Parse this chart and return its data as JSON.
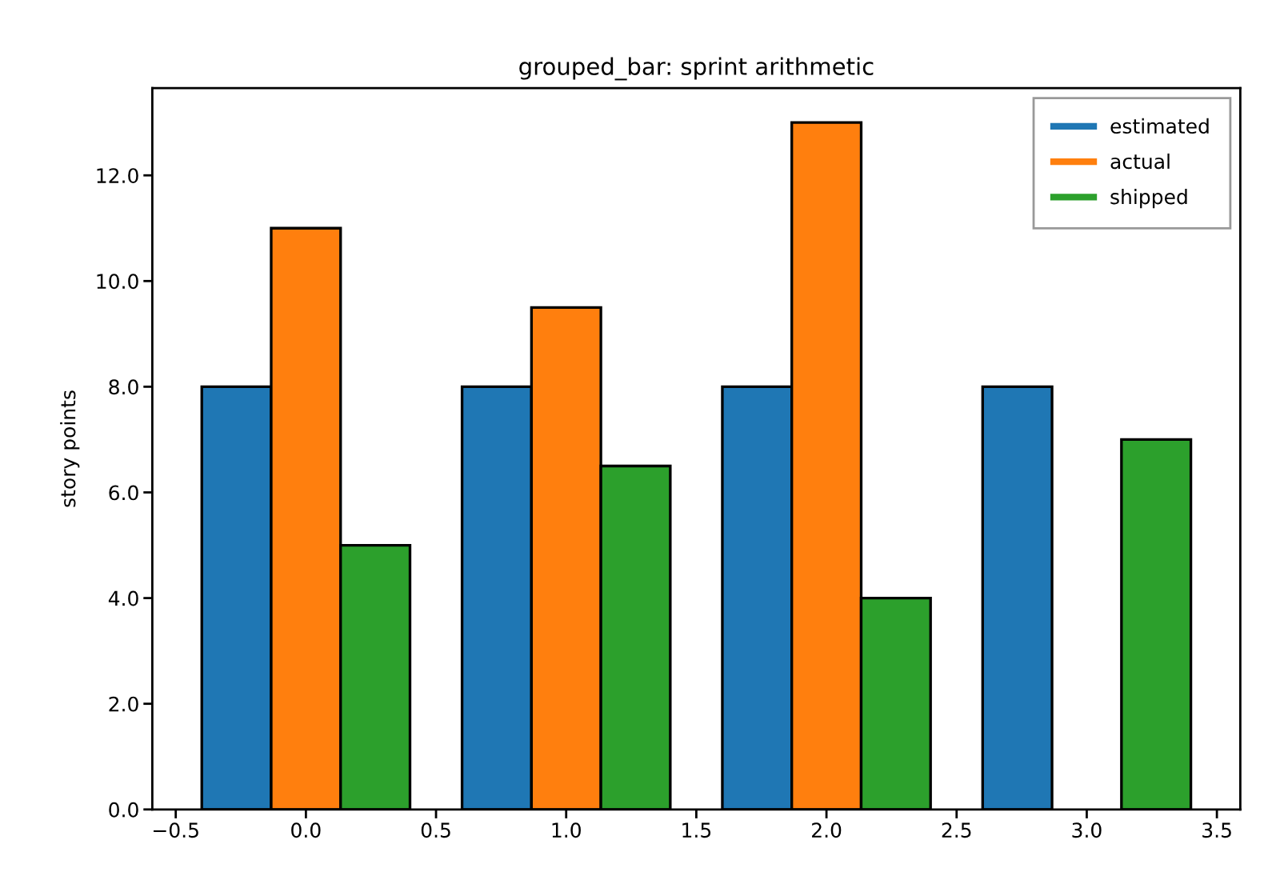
{
  "chart_data": {
    "type": "bar",
    "title": "grouped_bar: sprint arithmetic",
    "ylabel": "story points",
    "x": [
      0,
      1,
      2,
      3
    ],
    "series": [
      {
        "name": "estimated",
        "color": "#1f77b4",
        "values": [
          8,
          8,
          8,
          8
        ]
      },
      {
        "name": "actual",
        "color": "#ff7f0e",
        "values": [
          11,
          9.5,
          13,
          null
        ]
      },
      {
        "name": "shipped",
        "color": "#2ca02c",
        "values": [
          5,
          6.5,
          4,
          7
        ]
      }
    ],
    "xlim": [
      -0.59,
      3.59
    ],
    "xticks": [
      {
        "value": -0.5,
        "label": "−0.5"
      },
      {
        "value": 0,
        "label": "0.0"
      },
      0.5,
      {
        "value": 1,
        "label": "1.0"
      },
      1.5,
      {
        "value": 2,
        "label": "2.0"
      },
      2.5,
      {
        "value": 3,
        "label": "3.0"
      },
      3.5
    ],
    "ylim": [
      0,
      13.65
    ],
    "yticks": [
      {
        "value": 0,
        "label": "0.0"
      },
      {
        "value": 2,
        "label": "2.0"
      },
      {
        "value": 4,
        "label": "4.0"
      },
      {
        "value": 6,
        "label": "6.0"
      },
      {
        "value": 8,
        "label": "8.0"
      },
      {
        "value": 10,
        "label": "10.0"
      },
      {
        "value": 12,
        "label": "12.0"
      }
    ],
    "grid": false,
    "legend": "top right"
  }
}
